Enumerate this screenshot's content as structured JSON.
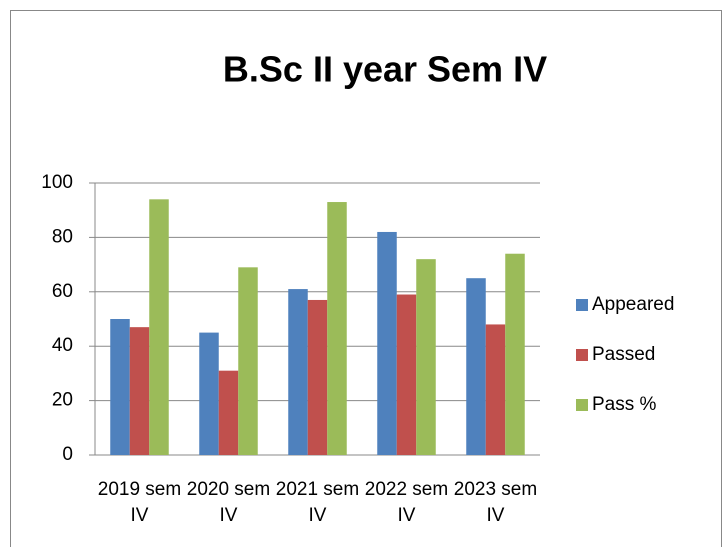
{
  "chart_data": {
    "type": "bar",
    "title": "B.Sc II year Sem IV",
    "categories": [
      "2019 sem IV",
      "2020 sem IV",
      "2021 sem IV",
      "2022 sem IV",
      "2023 sem IV"
    ],
    "series": [
      {
        "name": "Appeared",
        "color": "#4f81bd",
        "values": [
          50,
          45,
          61,
          82,
          65
        ]
      },
      {
        "name": "Passed",
        "color": "#c0504d",
        "values": [
          47,
          31,
          57,
          59,
          48
        ]
      },
      {
        "name": "Pass %",
        "color": "#9bbb59",
        "values": [
          94,
          69,
          93,
          72,
          74
        ]
      }
    ],
    "ylim": [
      0,
      100
    ],
    "yticks": [
      0,
      20,
      40,
      60,
      80,
      100
    ],
    "grid": true,
    "legend": "right"
  }
}
